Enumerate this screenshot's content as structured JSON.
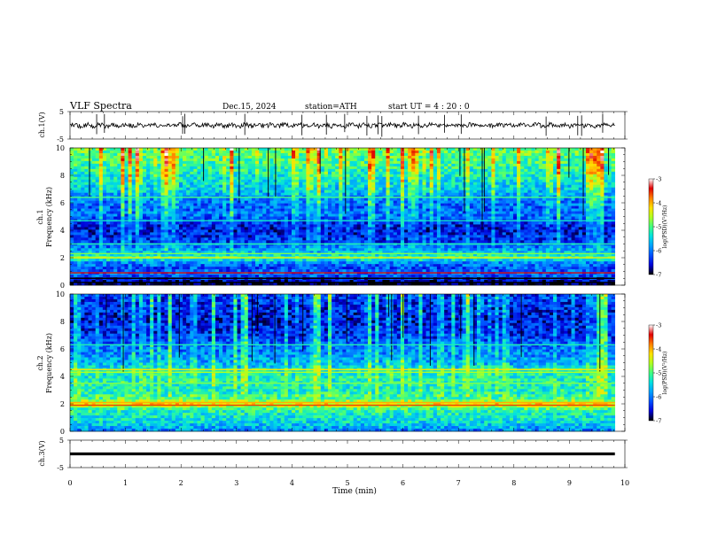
{
  "header": {
    "title": "VLF  Spectra",
    "date": "Dec.15, 2024",
    "station": "station=ATH",
    "start": "start  UT  =   4  : 20 : 0"
  },
  "chart_data": [
    {
      "type": "line",
      "name": "ch1-waveform",
      "ylabel": "ch.1(V)",
      "xlim": [
        0,
        10
      ],
      "ylim": [
        -5,
        5
      ],
      "yticks": [
        "5",
        "-5"
      ],
      "x_extent": [
        0,
        9.82
      ],
      "baseline_value": 0,
      "spike_times": [
        0.48,
        0.62,
        2.03,
        2.07,
        3.15,
        4.18,
        4.62,
        4.95,
        5.35,
        5.55,
        5.62,
        6.28,
        6.75,
        7.05,
        8.58,
        9.15,
        9.22,
        9.6
      ]
    },
    {
      "type": "heatmap",
      "name": "ch1-spectrogram",
      "ylabel_lines": [
        "ch.1",
        "Frequency  (kHz)"
      ],
      "xlim": [
        0,
        10
      ],
      "ylim": [
        0,
        10
      ],
      "yticks": [
        "0",
        "2",
        "4",
        "6",
        "8",
        "10"
      ],
      "x_extent": [
        0,
        9.82
      ],
      "profile": [
        {
          "f": 0.0,
          "level": -7.0
        },
        {
          "f": 0.4,
          "level": -6.5
        },
        {
          "f": 0.8,
          "level": -6.0
        },
        {
          "f": 1.2,
          "level": -6.2
        },
        {
          "f": 1.6,
          "level": -6.0
        },
        {
          "f": 2.0,
          "level": -5.0
        },
        {
          "f": 2.4,
          "level": -5.6
        },
        {
          "f": 2.8,
          "level": -6.0
        },
        {
          "f": 3.2,
          "level": -6.3
        },
        {
          "f": 3.6,
          "level": -6.4
        },
        {
          "f": 4.0,
          "level": -6.5
        },
        {
          "f": 4.4,
          "level": -6.4
        },
        {
          "f": 4.8,
          "level": -6.2
        },
        {
          "f": 5.2,
          "level": -6.0
        },
        {
          "f": 5.6,
          "level": -6.1
        },
        {
          "f": 6.0,
          "level": -6.0
        },
        {
          "f": 6.4,
          "level": -5.9
        },
        {
          "f": 6.8,
          "level": -5.6
        },
        {
          "f": 7.2,
          "level": -5.5
        },
        {
          "f": 7.6,
          "level": -5.4
        },
        {
          "f": 8.0,
          "level": -5.3
        },
        {
          "f": 8.4,
          "level": -5.2
        },
        {
          "f": 8.8,
          "level": -5.1
        },
        {
          "f": 9.2,
          "level": -5.0
        },
        {
          "f": 9.6,
          "level": -4.9
        },
        {
          "f": 10.0,
          "level": -4.9
        }
      ],
      "lines": [
        {
          "f": 0.2,
          "level": -7.0
        },
        {
          "f": 0.5,
          "level": -7.0
        },
        {
          "f": 0.9,
          "level": -3.4
        },
        {
          "f": 2.0,
          "level": -4.4
        },
        {
          "f": 2.3,
          "level": -4.8
        },
        {
          "f": 3.0,
          "level": -5.2
        },
        {
          "f": 4.7,
          "level": -5.3
        },
        {
          "f": 6.4,
          "level": -5.0
        }
      ]
    },
    {
      "type": "heatmap",
      "name": "ch2-spectrogram",
      "ylabel_lines": [
        "ch.2",
        "Frequency  (kHz)"
      ],
      "xlim": [
        0,
        10
      ],
      "ylim": [
        0,
        10
      ],
      "yticks": [
        "0",
        "2",
        "4",
        "6",
        "8",
        "10"
      ],
      "x_extent": [
        0,
        9.82
      ],
      "profile": [
        {
          "f": 0.0,
          "level": -6.0
        },
        {
          "f": 0.4,
          "level": -5.6
        },
        {
          "f": 0.8,
          "level": -5.4
        },
        {
          "f": 1.2,
          "level": -5.3
        },
        {
          "f": 1.6,
          "level": -5.1
        },
        {
          "f": 2.0,
          "level": -4.2
        },
        {
          "f": 2.4,
          "level": -5.0
        },
        {
          "f": 2.8,
          "level": -5.2
        },
        {
          "f": 3.2,
          "level": -5.3
        },
        {
          "f": 3.6,
          "level": -5.2
        },
        {
          "f": 4.0,
          "level": -5.3
        },
        {
          "f": 4.4,
          "level": -5.2
        },
        {
          "f": 4.8,
          "level": -5.6
        },
        {
          "f": 5.2,
          "level": -5.8
        },
        {
          "f": 5.6,
          "level": -5.9
        },
        {
          "f": 6.0,
          "level": -6.0
        },
        {
          "f": 6.4,
          "level": -6.1
        },
        {
          "f": 6.8,
          "level": -6.3
        },
        {
          "f": 7.2,
          "level": -6.4
        },
        {
          "f": 7.6,
          "level": -6.4
        },
        {
          "f": 8.0,
          "level": -6.5
        },
        {
          "f": 8.4,
          "level": -6.5
        },
        {
          "f": 8.8,
          "level": -6.4
        },
        {
          "f": 9.2,
          "level": -6.4
        },
        {
          "f": 9.6,
          "level": -6.3
        },
        {
          "f": 10.0,
          "level": -6.3
        }
      ],
      "lines": [
        {
          "f": 1.9,
          "level": -3.6
        },
        {
          "f": 2.1,
          "level": -4.0
        },
        {
          "f": 3.5,
          "level": -4.8
        },
        {
          "f": 4.3,
          "level": -4.6
        },
        {
          "f": 4.5,
          "level": -4.3
        },
        {
          "f": 6.3,
          "level": -5.2
        }
      ]
    },
    {
      "type": "line",
      "name": "ch3-waveform",
      "ylabel": "ch.3(V)",
      "xlim": [
        0,
        10
      ],
      "ylim": [
        -5,
        5
      ],
      "yticks": [
        "5",
        "-5"
      ],
      "x_extent": [
        0,
        9.82
      ],
      "baseline_value": 0
    }
  ],
  "x_axis": {
    "label": "Time  (min)",
    "ticks": [
      "0",
      "1",
      "2",
      "3",
      "4",
      "5",
      "6",
      "7",
      "8",
      "9",
      "10"
    ]
  },
  "colorbar": {
    "label": "log(PSD)(V²/Hz)",
    "ticks": [
      "-3",
      "-4",
      "-5",
      "-6",
      "-7"
    ],
    "range": [
      -7,
      -3
    ],
    "colors": [
      "#000000",
      "#0000d8",
      "#0050ff",
      "#00a0ff",
      "#00e0e0",
      "#40ff80",
      "#b0ff20",
      "#ffe000",
      "#ff8000",
      "#e00000",
      "#ffffff"
    ]
  }
}
